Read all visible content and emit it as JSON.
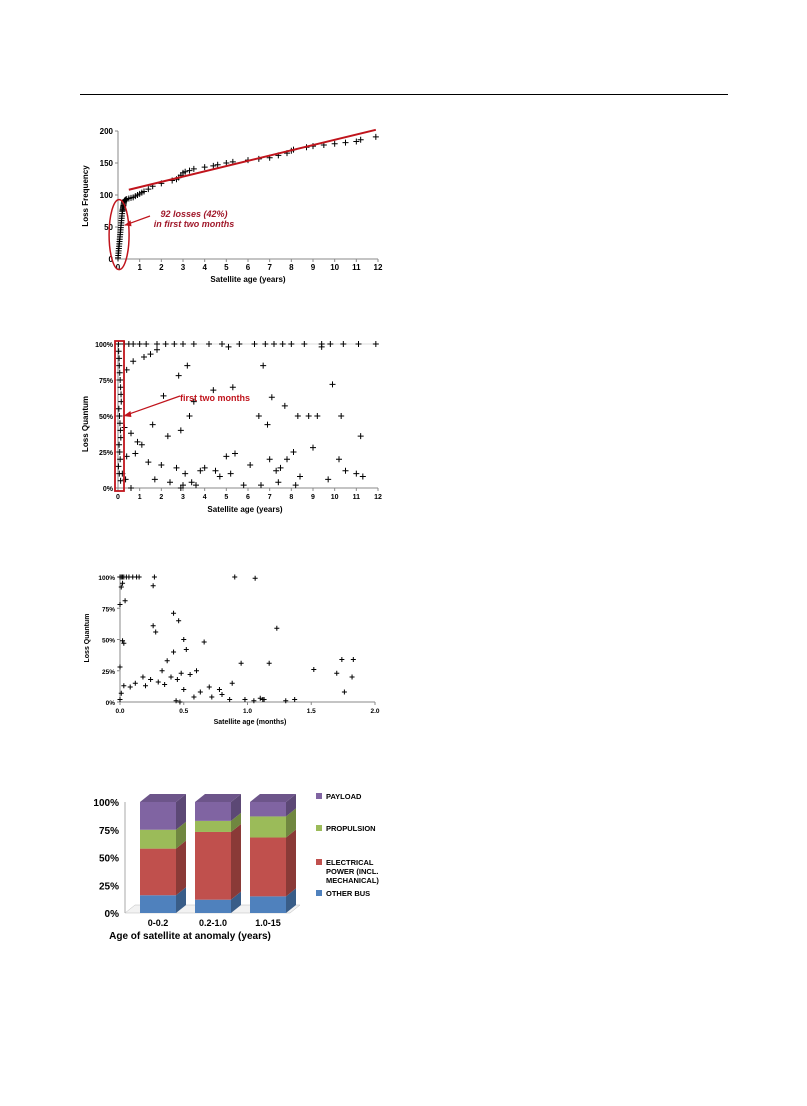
{
  "chart_data": [
    {
      "type": "scatter",
      "xlabel": "Satellite age (years)",
      "ylabel": "Loss Frequency",
      "xlim": [
        0,
        12
      ],
      "ylim": [
        0,
        220
      ],
      "xticks": [
        "0",
        "1",
        "2",
        "3",
        "4",
        "5",
        "6",
        "7",
        "8",
        "9",
        "10",
        "11",
        "12"
      ],
      "yticks": [
        "0",
        "50",
        "100",
        "150",
        "200"
      ],
      "annotation": {
        "line1": "92 losses (42%)",
        "line2": "in first two months"
      },
      "trend": {
        "color": "#c0141c",
        "x": [
          0.5,
          11.9
        ],
        "y": [
          119,
          222
        ]
      },
      "points": {
        "x": [
          0.0,
          0.01,
          0.02,
          0.03,
          0.04,
          0.05,
          0.06,
          0.07,
          0.08,
          0.09,
          0.1,
          0.11,
          0.12,
          0.13,
          0.14,
          0.15,
          0.16,
          0.17,
          0.18,
          0.19,
          0.2,
          0.21,
          0.22,
          0.23,
          0.24,
          0.25,
          0.26,
          0.27,
          0.28,
          0.29,
          0.3,
          0.32,
          0.35,
          0.4,
          0.5,
          0.6,
          0.7,
          0.8,
          0.9,
          1.0,
          1.1,
          1.2,
          1.4,
          1.6,
          2.0,
          2.5,
          2.7,
          2.8,
          2.9,
          3.0,
          3.1,
          3.3,
          3.5,
          4.0,
          4.4,
          4.6,
          5.0,
          5.3,
          6.0,
          6.5,
          7.0,
          7.4,
          7.8,
          8.0,
          8.1,
          8.7,
          9.0,
          9.5,
          10.0,
          10.5,
          11.0,
          11.2,
          11.9
        ],
        "y": [
          2,
          6,
          10,
          14,
          18,
          22,
          26,
          30,
          34,
          38,
          42,
          46,
          50,
          54,
          58,
          62,
          66,
          70,
          74,
          78,
          82,
          84,
          86,
          88,
          90,
          92,
          94,
          96,
          98,
          99,
          100,
          101,
          102,
          103,
          104,
          105,
          106,
          108,
          110,
          112,
          114,
          116,
          120,
          125,
          130,
          135,
          137,
          140,
          144,
          148,
          150,
          152,
          155,
          158,
          160,
          162,
          165,
          167,
          170,
          172,
          174,
          178,
          182,
          186,
          188,
          192,
          194,
          196,
          198,
          200,
          202,
          205,
          210
        ]
      }
    },
    {
      "type": "scatter",
      "xlabel": "Satellite age (years)",
      "ylabel": "Loss Quantum",
      "xlim": [
        0,
        12
      ],
      "ylim": [
        0,
        100
      ],
      "xticks": [
        "0",
        "1",
        "2",
        "3",
        "4",
        "5",
        "6",
        "7",
        "8",
        "9",
        "10",
        "11",
        "12"
      ],
      "yticks": [
        "0%",
        "25%",
        "50%",
        "75%",
        "100%"
      ],
      "annotation": {
        "line1": "first two months"
      },
      "highlight_color": "#c0141c",
      "points": {
        "x": [
          0.02,
          0.03,
          0.05,
          0.06,
          0.08,
          0.1,
          0.12,
          0.14,
          0.15,
          0.04,
          0.07,
          0.09,
          0.11,
          0.13,
          0.05,
          0.08,
          0.1,
          0.02,
          0.06,
          0.12,
          0.3,
          0.5,
          0.7,
          1.0,
          1.3,
          1.8,
          2.2,
          2.6,
          3.0,
          3.5,
          4.2,
          4.8,
          5.1,
          5.6,
          6.3,
          6.8,
          7.2,
          7.6,
          8.0,
          8.6,
          9.4,
          9.8,
          10.4,
          11.1,
          11.9,
          0.4,
          0.7,
          1.2,
          1.5,
          1.8,
          2.1,
          2.8,
          3.2,
          3.5,
          4.4,
          5.3,
          6.7,
          7.1,
          7.7,
          8.3,
          9.2,
          9.9,
          10.3,
          11.2,
          0.3,
          0.6,
          1.1,
          1.6,
          2.3,
          2.9,
          3.3,
          4.0,
          4.5,
          5.0,
          5.4,
          6.5,
          6.9,
          7.3,
          7.8,
          8.1,
          8.8,
          9.0,
          9.4,
          10.2,
          11.0,
          0.4,
          0.9,
          1.4,
          2.0,
          2.7,
          3.1,
          3.8,
          4.7,
          5.2,
          6.1,
          7.0,
          7.5,
          8.4,
          9.7,
          10.5,
          11.3,
          0.35,
          0.8,
          1.7,
          2.4,
          3.6,
          5.8,
          6.6,
          7.4,
          8.2,
          2.9,
          3.0,
          3.4,
          0.2,
          0.6
        ],
        "y": [
          100,
          95,
          90,
          85,
          80,
          75,
          70,
          65,
          60,
          55,
          50,
          45,
          40,
          35,
          30,
          25,
          20,
          15,
          10,
          5,
          100,
          100,
          100,
          100,
          100,
          100,
          100,
          100,
          100,
          100,
          100,
          100,
          98,
          100,
          100,
          100,
          100,
          100,
          100,
          100,
          100,
          100,
          100,
          100,
          100,
          82,
          88,
          91,
          93,
          96,
          64,
          78,
          85,
          60,
          68,
          70,
          85,
          63,
          57,
          50,
          50,
          72,
          50,
          36,
          42,
          38,
          30,
          44,
          36,
          40,
          50,
          14,
          12,
          22,
          24,
          50,
          44,
          12,
          20,
          25,
          50,
          28,
          98,
          20,
          10,
          22,
          32,
          18,
          16,
          14,
          10,
          12,
          8,
          10,
          16,
          20,
          14,
          8,
          6,
          12,
          8,
          6,
          24,
          6,
          4,
          2,
          2,
          2,
          4,
          2,
          0,
          2,
          4,
          10,
          0
        ]
      }
    },
    {
      "type": "scatter",
      "xlabel": "Satellite age (months)",
      "ylabel": "Loss Quantum",
      "xlim": [
        0,
        2
      ],
      "ylim": [
        0,
        100
      ],
      "xticks": [
        "0.0",
        "0.5",
        "1.0",
        "1.5",
        "2.0"
      ],
      "yticks": [
        "0%",
        "25%",
        "50%",
        "75%",
        "100%"
      ],
      "points": {
        "x": [
          0.0,
          0.01,
          0.02,
          0.03,
          0.05,
          0.07,
          0.1,
          0.13,
          0.15,
          0.01,
          0.02,
          0.0,
          0.04,
          0.02,
          0.03,
          0.0,
          0.03,
          0.01,
          0.0,
          0.26,
          0.28,
          0.26,
          0.27,
          0.42,
          0.46,
          0.5,
          0.52,
          0.66,
          0.9,
          0.95,
          1.06,
          1.12,
          1.17,
          1.23,
          1.37,
          1.52,
          1.7,
          1.74,
          1.76,
          1.83,
          1.82,
          0.08,
          0.12,
          0.2,
          0.3,
          0.35,
          0.4,
          0.45,
          0.48,
          0.55,
          0.6,
          0.7,
          0.78,
          0.8,
          0.86,
          0.88,
          0.98,
          1.05,
          1.1,
          1.13,
          1.3,
          0.37,
          0.42,
          0.5,
          0.58,
          0.63,
          0.72,
          0.44,
          0.47,
          0.18,
          0.24,
          0.33
        ],
        "y": [
          100,
          100,
          100,
          100,
          100,
          100,
          100,
          100,
          100,
          92,
          95,
          78,
          81,
          49,
          47,
          28,
          13,
          7,
          2,
          61,
          56,
          93,
          100,
          71,
          65,
          50,
          42,
          48,
          100,
          31,
          99,
          2,
          31,
          59,
          2,
          26,
          23,
          34,
          8,
          34,
          20,
          12,
          15,
          13,
          16,
          14,
          20,
          18,
          23,
          22,
          25,
          12,
          10,
          6,
          2,
          15,
          2,
          1,
          3,
          2,
          1,
          33,
          40,
          10,
          4,
          8,
          4,
          1,
          0,
          20,
          18,
          25
        ]
      }
    },
    {
      "type": "bar",
      "stacked": true,
      "xlabel": "Age of satellite at anomaly (years)",
      "categories": [
        "0-0.2",
        "0.2-1.0",
        "1.0-15"
      ],
      "yticks": [
        "0%",
        "25%",
        "50%",
        "75%",
        "100%"
      ],
      "ylim": [
        0,
        100
      ],
      "series": [
        {
          "name": "OTHER BUS",
          "values": [
            16,
            12,
            15
          ],
          "color": "#4f81bd",
          "legend": [
            "OTHER BUS"
          ]
        },
        {
          "name": "ELECTRICAL POWER (INCL. MECHANICAL)",
          "values": [
            42,
            61,
            53
          ],
          "color": "#c0504d",
          "legend": [
            "ELECTRICAL",
            "POWER (INCL.",
            "MECHANICAL)"
          ]
        },
        {
          "name": "PROPULSION",
          "values": [
            17,
            10,
            19
          ],
          "color": "#9bbb59",
          "legend": [
            "PROPULSION"
          ]
        },
        {
          "name": "PAYLOAD",
          "values": [
            25,
            17,
            13
          ],
          "color": "#8064a2",
          "legend": [
            "PAYLOAD"
          ]
        }
      ]
    }
  ]
}
